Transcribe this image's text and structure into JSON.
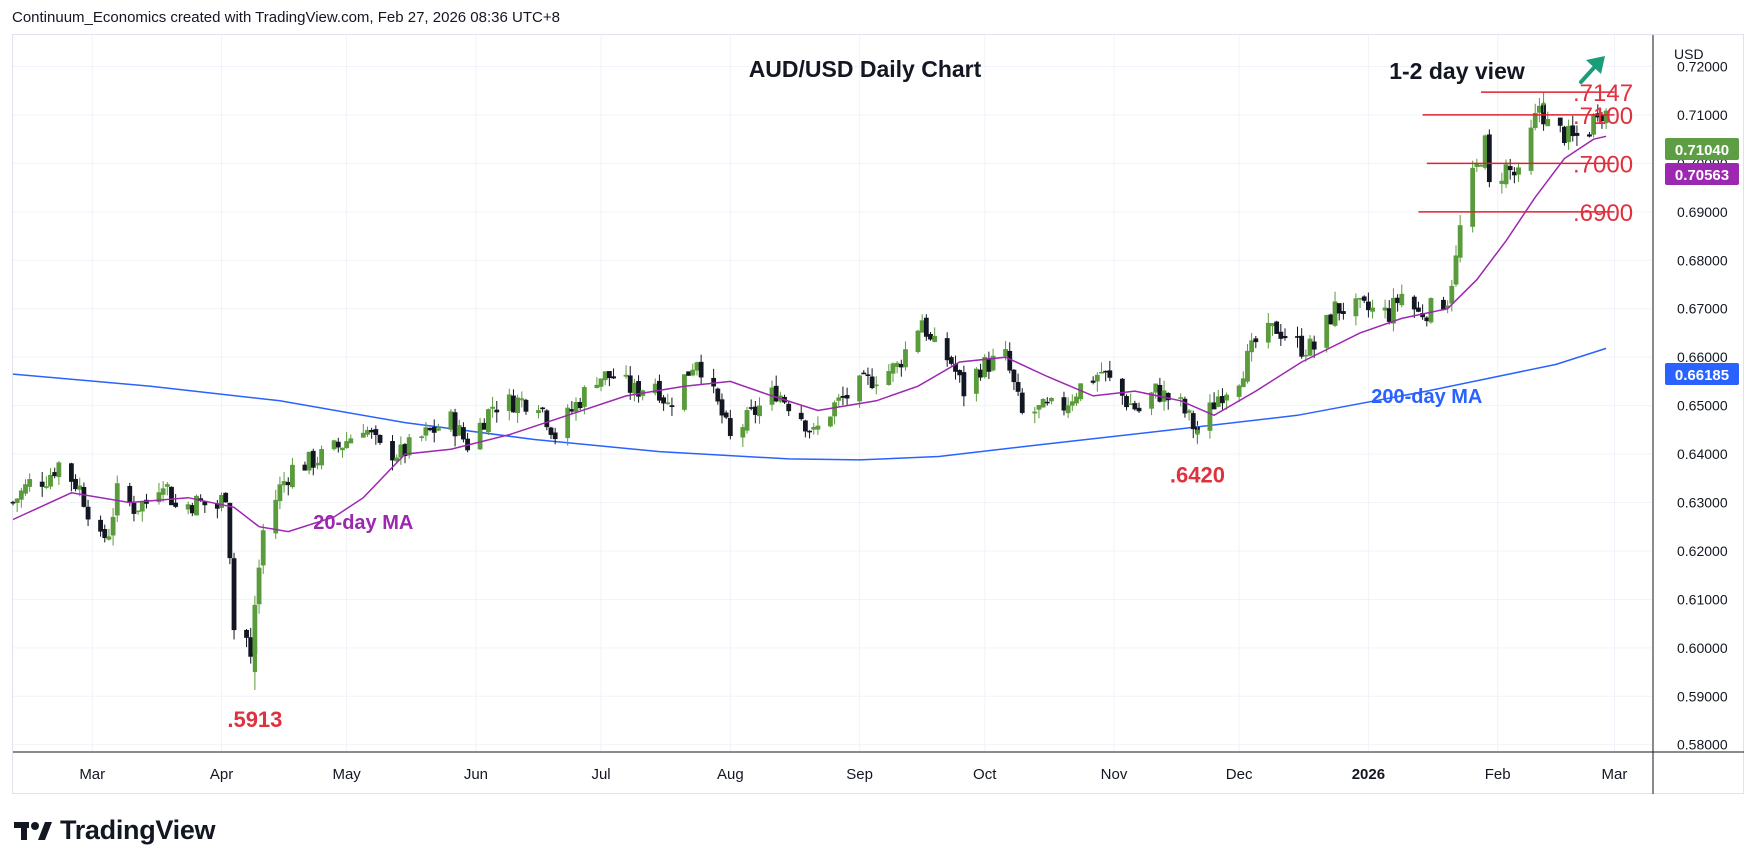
{
  "header": {
    "attribution": "Continuum_Economics created with TradingView.com, Feb 27, 2026 08:36 UTC+8"
  },
  "footer": {
    "brand": "TradingView"
  },
  "colors": {
    "up": "#5a9b3c",
    "down": "#131722",
    "ma20": "#9c27b0",
    "ma200": "#2962ff",
    "level_line": "#e0202e",
    "level_text": "#e0313f",
    "arrow": "#1a9e7a",
    "last_price_bg": "#5d9e44",
    "ma20_price_bg": "#9c27b0",
    "ma200_price_bg": "#2962ff"
  },
  "chart_data": {
    "type": "candlestick",
    "title": "AUD/USD Daily Chart",
    "view_label": "1-2 day view",
    "view_direction": "up",
    "currency": "USD",
    "x_ticks": [
      "Mar",
      "Apr",
      "May",
      "Jun",
      "Jul",
      "Aug",
      "Sep",
      "Oct",
      "Nov",
      "Dec",
      "2026",
      "Feb",
      "Mar"
    ],
    "x_range": [
      "2025-02-10",
      "2026-03-10"
    ],
    "y_ticks": [
      "0.72000",
      "0.71000",
      "0.70000",
      "0.69000",
      "0.68000",
      "0.67000",
      "0.66000",
      "0.65000",
      "0.64000",
      "0.63000",
      "0.62000",
      "0.61000",
      "0.60000",
      "0.59000",
      "0.58000"
    ],
    "ylim": [
      0.5785,
      0.7265
    ],
    "price_tags": [
      {
        "label": "0.71040",
        "value": 0.7104,
        "kind": "last"
      },
      {
        "label": "0.70563",
        "value": 0.70563,
        "kind": "ma20"
      },
      {
        "label": "0.66185",
        "value": 0.66185,
        "kind": "ma200"
      }
    ],
    "levels": [
      {
        "label": ".7147",
        "value": 0.7147
      },
      {
        "label": ".7100",
        "value": 0.71
      },
      {
        "label": ".7000",
        "value": 0.7
      },
      {
        "label": ".6900",
        "value": 0.69
      }
    ],
    "annotations": [
      {
        "text": ".5913",
        "date": "2025-04-09",
        "value": 0.5913
      },
      {
        "text": ".6420",
        "date": "2025-11-21",
        "value": 0.642
      },
      {
        "text": "20-day MA",
        "date": "2025-05-05",
        "value": 0.6245
      },
      {
        "text": "200-day MA",
        "date": "2026-01-15",
        "value": 0.6505
      }
    ],
    "close_path": [
      [
        "2025-02-10",
        0.63
      ],
      [
        "2025-02-14",
        0.634
      ],
      [
        "2025-02-18",
        0.635
      ],
      [
        "2025-02-21",
        0.638
      ],
      [
        "2025-02-26",
        0.633
      ],
      [
        "2025-03-03",
        0.622
      ],
      [
        "2025-03-05",
        0.624
      ],
      [
        "2025-03-07",
        0.632
      ],
      [
        "2025-03-11",
        0.629
      ],
      [
        "2025-03-14",
        0.63
      ],
      [
        "2025-03-18",
        0.635
      ],
      [
        "2025-03-21",
        0.629
      ],
      [
        "2025-03-26",
        0.63
      ],
      [
        "2025-03-31",
        0.629
      ],
      [
        "2025-04-02",
        0.632
      ],
      [
        "2025-04-03",
        0.62
      ],
      [
        "2025-04-04",
        0.604
      ],
      [
        "2025-04-07",
        0.602
      ],
      [
        "2025-04-08",
        0.5975
      ],
      [
        "2025-04-09",
        0.609
      ],
      [
        "2025-04-11",
        0.624
      ],
      [
        "2025-04-15",
        0.633
      ],
      [
        "2025-04-18",
        0.637
      ],
      [
        "2025-04-24",
        0.639
      ],
      [
        "2025-04-30",
        0.642
      ],
      [
        "2025-05-05",
        0.646
      ],
      [
        "2025-05-09",
        0.641
      ],
      [
        "2025-05-14",
        0.64
      ],
      [
        "2025-05-20",
        0.644
      ],
      [
        "2025-05-26",
        0.647
      ],
      [
        "2025-05-30",
        0.642
      ],
      [
        "2025-06-05",
        0.65
      ],
      [
        "2025-06-11",
        0.651
      ],
      [
        "2025-06-16",
        0.651
      ],
      [
        "2025-06-20",
        0.644
      ],
      [
        "2025-06-24",
        0.649
      ],
      [
        "2025-06-30",
        0.656
      ],
      [
        "2025-07-04",
        0.656
      ],
      [
        "2025-07-09",
        0.653
      ],
      [
        "2025-07-14",
        0.655
      ],
      [
        "2025-07-17",
        0.65
      ],
      [
        "2025-07-24",
        0.66
      ],
      [
        "2025-07-30",
        0.648
      ],
      [
        "2025-08-01",
        0.643
      ],
      [
        "2025-08-06",
        0.648
      ],
      [
        "2025-08-12",
        0.653
      ],
      [
        "2025-08-18",
        0.648
      ],
      [
        "2025-08-21",
        0.644
      ],
      [
        "2025-08-26",
        0.65
      ],
      [
        "2025-09-01",
        0.654
      ],
      [
        "2025-09-05",
        0.656
      ],
      [
        "2025-09-10",
        0.658
      ],
      [
        "2025-09-16",
        0.668
      ],
      [
        "2025-09-18",
        0.663
      ],
      [
        "2025-09-23",
        0.659
      ],
      [
        "2025-09-26",
        0.653
      ],
      [
        "2025-09-30",
        0.658
      ],
      [
        "2025-10-06",
        0.66
      ],
      [
        "2025-10-10",
        0.648
      ],
      [
        "2025-10-14",
        0.649
      ],
      [
        "2025-10-20",
        0.65
      ],
      [
        "2025-10-24",
        0.654
      ],
      [
        "2025-10-29",
        0.657
      ],
      [
        "2025-11-04",
        0.651
      ],
      [
        "2025-11-07",
        0.649
      ],
      [
        "2025-11-11",
        0.653
      ],
      [
        "2025-11-17",
        0.65
      ],
      [
        "2025-11-21",
        0.6445
      ],
      [
        "2025-11-26",
        0.652
      ],
      [
        "2025-12-01",
        0.656
      ],
      [
        "2025-12-05",
        0.663
      ],
      [
        "2025-12-10",
        0.666
      ],
      [
        "2025-12-16",
        0.662
      ],
      [
        "2025-12-19",
        0.662
      ],
      [
        "2025-12-24",
        0.67
      ],
      [
        "2025-12-30",
        0.67
      ],
      [
        "2026-01-06",
        0.669
      ],
      [
        "2026-01-09",
        0.673
      ],
      [
        "2026-01-13",
        0.669
      ],
      [
        "2026-01-16",
        0.67
      ],
      [
        "2026-01-20",
        0.672
      ],
      [
        "2026-01-22",
        0.68
      ],
      [
        "2026-01-24",
        0.693
      ],
      [
        "2026-01-27",
        0.699
      ],
      [
        "2026-01-29",
        0.704
      ],
      [
        "2026-01-30",
        0.695
      ],
      [
        "2026-02-03",
        0.699
      ],
      [
        "2026-02-06",
        0.697
      ],
      [
        "2026-02-09",
        0.706
      ],
      [
        "2026-02-11",
        0.712
      ],
      [
        "2026-02-13",
        0.708
      ],
      [
        "2026-02-17",
        0.706
      ],
      [
        "2026-02-19",
        0.705
      ],
      [
        "2026-02-23",
        0.707
      ],
      [
        "2026-02-25",
        0.7115
      ],
      [
        "2026-02-27",
        0.7104
      ]
    ],
    "ma20_path": [
      [
        "2025-02-10",
        0.6265
      ],
      [
        "2025-02-24",
        0.632
      ],
      [
        "2025-03-10",
        0.63
      ],
      [
        "2025-03-24",
        0.631
      ],
      [
        "2025-04-04",
        0.629
      ],
      [
        "2025-04-10",
        0.625
      ],
      [
        "2025-04-17",
        0.624
      ],
      [
        "2025-04-28",
        0.627
      ],
      [
        "2025-05-05",
        0.631
      ],
      [
        "2025-05-15",
        0.64
      ],
      [
        "2025-05-26",
        0.641
      ],
      [
        "2025-06-09",
        0.644
      ],
      [
        "2025-06-23",
        0.648
      ],
      [
        "2025-07-07",
        0.652
      ],
      [
        "2025-07-21",
        0.654
      ],
      [
        "2025-08-01",
        0.655
      ],
      [
        "2025-08-11",
        0.652
      ],
      [
        "2025-08-22",
        0.649
      ],
      [
        "2025-09-05",
        0.651
      ],
      [
        "2025-09-15",
        0.654
      ],
      [
        "2025-09-25",
        0.659
      ],
      [
        "2025-10-06",
        0.66
      ],
      [
        "2025-10-16",
        0.656
      ],
      [
        "2025-10-27",
        0.652
      ],
      [
        "2025-11-06",
        0.653
      ],
      [
        "2025-11-17",
        0.651
      ],
      [
        "2025-11-25",
        0.648
      ],
      [
        "2025-12-05",
        0.653
      ],
      [
        "2025-12-16",
        0.659
      ],
      [
        "2025-12-30",
        0.665
      ],
      [
        "2026-01-09",
        0.668
      ],
      [
        "2026-01-20",
        0.67
      ],
      [
        "2026-01-27",
        0.676
      ],
      [
        "2026-02-03",
        0.684
      ],
      [
        "2026-02-10",
        0.693
      ],
      [
        "2026-02-17",
        0.701
      ],
      [
        "2026-02-24",
        0.705
      ],
      [
        "2026-02-27",
        0.7056
      ]
    ],
    "ma200_path": [
      [
        "2025-02-10",
        0.6565
      ],
      [
        "2025-03-15",
        0.654
      ],
      [
        "2025-04-15",
        0.651
      ],
      [
        "2025-05-15",
        0.6465
      ],
      [
        "2025-06-15",
        0.643
      ],
      [
        "2025-07-15",
        0.6405
      ],
      [
        "2025-08-15",
        0.639
      ],
      [
        "2025-09-01",
        0.6388
      ],
      [
        "2025-09-20",
        0.6395
      ],
      [
        "2025-10-15",
        0.642
      ],
      [
        "2025-11-15",
        0.645
      ],
      [
        "2025-12-15",
        0.648
      ],
      [
        "2026-01-15",
        0.653
      ],
      [
        "2026-02-15",
        0.6585
      ],
      [
        "2026-02-27",
        0.6618
      ]
    ],
    "extra_bars": [
      {
        "date": "2025-04-09",
        "open": 0.595,
        "high": 0.601,
        "low": 0.5913,
        "close": 0.599
      },
      {
        "date": "2025-11-21",
        "open": 0.644,
        "high": 0.646,
        "low": 0.642,
        "close": 0.645
      },
      {
        "date": "2026-02-12",
        "open": 0.712,
        "high": 0.7147,
        "low": 0.7105,
        "close": 0.7125
      }
    ]
  }
}
